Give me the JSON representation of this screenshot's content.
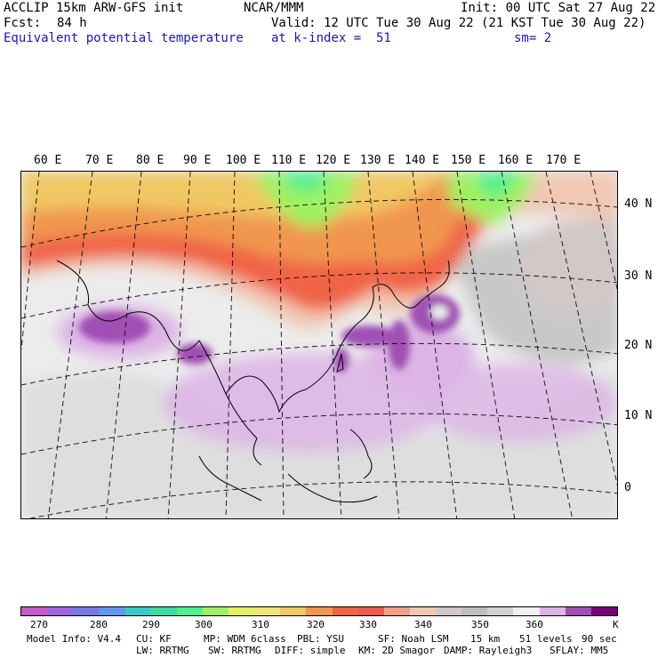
{
  "header": {
    "model_line": "ACCLIP 15km ARW-GFS init",
    "center": "NCAR/MMM",
    "init": "Init: 00 UTC Sat 27 Aug 22",
    "fcst_label": "Fcst:",
    "fcst_value": "84 h",
    "valid": "Valid: 12 UTC Tue 30 Aug 22 (21 KST Tue 30 Aug 22)",
    "field": "Equivalent potential temperature",
    "level": "at k-index =  51",
    "smooth": "sm= 2"
  },
  "map": {
    "lon_labels": [
      "60 E",
      "70 E",
      "80 E",
      "90 E",
      "100 E",
      "110 E",
      "120 E",
      "130 E",
      "140 E",
      "150 E",
      "160 E",
      "170 E"
    ],
    "lat_labels": [
      "40 N",
      "30 N",
      "20 N",
      "10 N",
      "0"
    ]
  },
  "colorbar": {
    "colors": [
      "#c85ac8",
      "#a064dc",
      "#7878e6",
      "#6496f0",
      "#3cc8c8",
      "#3cdca0",
      "#50f08c",
      "#a0f064",
      "#e6f064",
      "#f0e678",
      "#f0c864",
      "#f09650",
      "#f06446",
      "#f05a50",
      "#f0a088",
      "#f0c8b4",
      "#d2c8c8",
      "#bebebe",
      "#d2d2d2",
      "#f0f0f0",
      "#dcb4e6",
      "#a050b4",
      "#780078"
    ],
    "tick_labels": [
      "270",
      "280",
      "290",
      "300",
      "310",
      "320",
      "330",
      "340",
      "350",
      "360"
    ],
    "unit": "K"
  },
  "model_info": {
    "line1": [
      "Model Info: V4.4",
      "CU: KF",
      "MP: WDM 6class",
      "PBL: YSU",
      "SF: Noah LSM",
      "15 km",
      "51 levels",
      "90 sec"
    ],
    "line2": [
      "LW: RRTMG",
      "SW: RRTMG",
      "DIFF: simple",
      "KM: 2D Smagor",
      "DAMP: Rayleigh3",
      "SFLAY: MM5"
    ]
  }
}
